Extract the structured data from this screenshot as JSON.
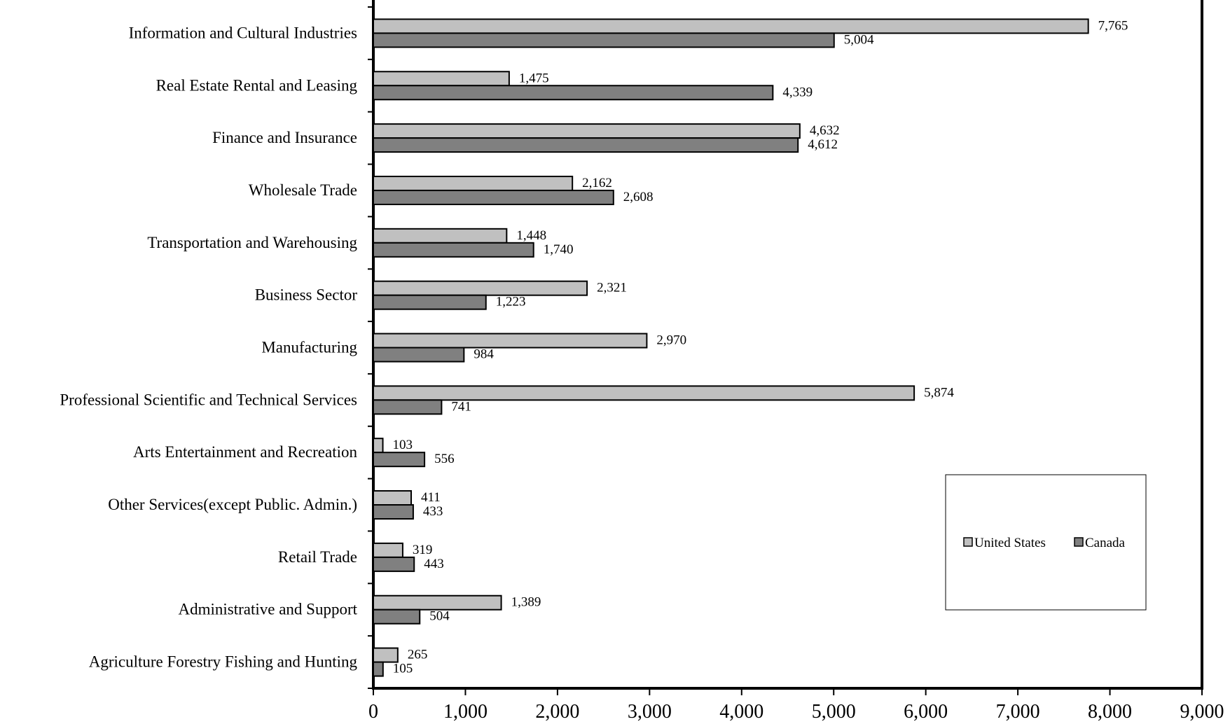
{
  "chart_data": {
    "type": "bar",
    "orientation": "horizontal",
    "title": "",
    "xlabel": "",
    "ylabel": "",
    "xlim": [
      0,
      9000
    ],
    "x_ticks": [
      0,
      1000,
      2000,
      3000,
      4000,
      5000,
      6000,
      7000,
      8000,
      9000
    ],
    "x_tick_labels": [
      "0",
      "1,000",
      "2,000",
      "3,000",
      "4,000",
      "5,000",
      "6,000",
      "7,000",
      "8,000",
      "9,000"
    ],
    "grid": false,
    "legend_position": "right",
    "categories": [
      "Information and Cultural Industries",
      "Real Estate Rental and Leasing",
      "Finance and Insurance",
      "Wholesale Trade",
      "Transportation and Warehousing",
      "Business Sector",
      "Manufacturing",
      "Professional Scientific and Technical Services",
      "Arts Entertainment and Recreation",
      "Other Services(except Public. Admin.)",
      "Retail Trade",
      "Administrative and Support",
      "Agriculture Forestry Fishing and Hunting"
    ],
    "series": [
      {
        "name": "United States",
        "color": "#c0c0c0",
        "values": [
          7765,
          1475,
          4632,
          2162,
          1448,
          2321,
          2970,
          5874,
          103,
          411,
          319,
          1389,
          265
        ],
        "labels": [
          "7,765",
          "1,475",
          "4,632",
          "2,162",
          "1,448",
          "2,321",
          "2,970",
          "5,874",
          "103",
          "411",
          "319",
          "1,389",
          "265"
        ]
      },
      {
        "name": "Canada",
        "color": "#808080",
        "values": [
          5004,
          4339,
          4612,
          2608,
          1740,
          1223,
          984,
          741,
          556,
          433,
          443,
          504,
          105
        ],
        "labels": [
          "5,004",
          "4,339",
          "4,612",
          "2,608",
          "1,740",
          "1,223",
          "984",
          "741",
          "556",
          "433",
          "443",
          "504",
          "105"
        ]
      }
    ]
  }
}
